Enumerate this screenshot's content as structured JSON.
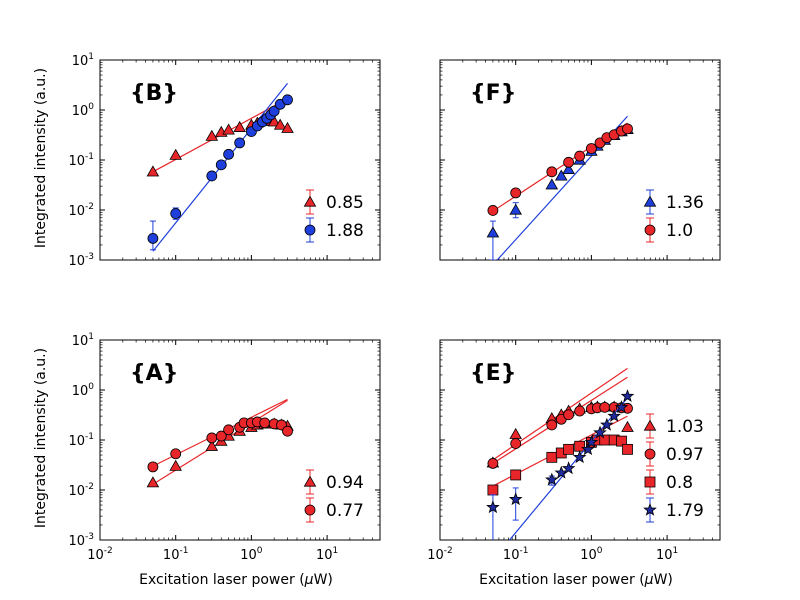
{
  "chart_data": {
    "type": "scatter",
    "scale": "log-log",
    "figure_ylabel": "Integrated intensity (a.u.)",
    "figure_xlabel_prefix": "Excitation laser power (",
    "figure_xlabel_mu": "μ",
    "figure_xlabel_suffix": "W)",
    "xlim": [
      0.01,
      50
    ],
    "ylim": [
      0.001,
      10
    ],
    "x_ticks": [
      {
        "value": 0.01,
        "base": "10",
        "exp": "-2"
      },
      {
        "value": 0.1,
        "base": "10",
        "exp": "-1"
      },
      {
        "value": 1,
        "base": "10",
        "exp": "0"
      },
      {
        "value": 10,
        "base": "10",
        "exp": "1"
      }
    ],
    "y_ticks": [
      {
        "value": 0.001,
        "base": "10",
        "exp": "-3"
      },
      {
        "value": 0.01,
        "base": "10",
        "exp": "-2"
      },
      {
        "value": 0.1,
        "base": "10",
        "exp": "-1"
      },
      {
        "value": 1,
        "base": "10",
        "exp": "0"
      },
      {
        "value": 10,
        "base": "10",
        "exp": "1"
      }
    ],
    "panels": [
      {
        "id": "B",
        "title": "{B}",
        "position": "top-left",
        "show_ylabels": true,
        "show_xlabels": false,
        "series": [
          {
            "name": "0.85",
            "marker": "triangle",
            "color": "#e8262a",
            "line_color": "#e8262a",
            "x": [
              0.05,
              0.1,
              0.3,
              0.4,
              0.5,
              0.7,
              1.0,
              1.2,
              1.4,
              1.6,
              1.8,
              2.0,
              2.4,
              3.0
            ],
            "y": [
              0.058,
              0.125,
              0.3,
              0.36,
              0.4,
              0.45,
              0.5,
              0.55,
              0.6,
              0.62,
              0.6,
              0.58,
              0.5,
              0.43
            ],
            "fit": {
              "x": [
                0.05,
                2.4
              ],
              "y": [
                0.058,
                1.4
              ]
            }
          },
          {
            "name": "1.88",
            "marker": "circle",
            "color": "#1f3fdc",
            "line_color": "#1f3fdc",
            "x": [
              0.05,
              0.1,
              0.3,
              0.4,
              0.5,
              0.7,
              1.0,
              1.2,
              1.4,
              1.6,
              1.8,
              2.0,
              2.4,
              3.0
            ],
            "y": [
              0.0027,
              0.0085,
              0.048,
              0.08,
              0.13,
              0.22,
              0.37,
              0.48,
              0.58,
              0.68,
              0.8,
              0.95,
              1.3,
              1.6
            ],
            "fit": {
              "x": [
                0.05,
                3.0
              ],
              "y": [
                0.0015,
                3.4
              ]
            },
            "errors": [
              {
                "x": 0.05,
                "lo": 0.0016,
                "hi": 0.006
              },
              {
                "x": 0.1,
                "lo": 0.0065,
                "hi": 0.011
              }
            ]
          }
        ]
      },
      {
        "id": "F",
        "title": "{F}",
        "position": "top-right",
        "show_ylabels": false,
        "show_xlabels": false,
        "series": [
          {
            "name": "1.36",
            "marker": "triangle",
            "color": "#1f3fdc",
            "line_color": "#1f3fdc",
            "x": [
              0.05,
              0.1,
              0.3,
              0.4,
              0.5,
              0.7,
              1.0,
              1.2,
              1.5,
              2.0,
              2.5,
              3.0
            ],
            "y": [
              0.0035,
              0.01,
              0.032,
              0.048,
              0.065,
              0.1,
              0.15,
              0.19,
              0.25,
              0.31,
              0.37,
              0.41
            ],
            "fit": {
              "x": [
                0.057,
                3.0
              ],
              "y": [
                0.001,
                0.75
              ]
            },
            "errors": [
              {
                "x": 0.05,
                "lo": 0.001,
                "hi": 0.006
              },
              {
                "x": 0.1,
                "lo": 0.007,
                "hi": 0.014
              }
            ]
          },
          {
            "name": "1.0",
            "marker": "circle",
            "color": "#e8262a",
            "line_color": "#e8262a",
            "x": [
              0.05,
              0.1,
              0.3,
              0.5,
              0.7,
              1.0,
              1.3,
              1.6,
              2.0,
              2.5,
              3.0
            ],
            "y": [
              0.0098,
              0.022,
              0.058,
              0.09,
              0.12,
              0.17,
              0.22,
              0.28,
              0.32,
              0.38,
              0.42
            ],
            "fit": {
              "x": [
                0.05,
                3.0
              ],
              "y": [
                0.0095,
                0.55
              ]
            }
          }
        ]
      },
      {
        "id": "A",
        "title": "{A}",
        "position": "bottom-left",
        "show_ylabels": true,
        "show_xlabels": true,
        "series": [
          {
            "name": "0.94",
            "marker": "triangle",
            "color": "#e8262a",
            "line_color": "#e8262a",
            "x": [
              0.05,
              0.1,
              0.3,
              0.4,
              0.5,
              0.7,
              1.0,
              1.2,
              1.5,
              2.0,
              2.5,
              3.0
            ],
            "y": [
              0.014,
              0.03,
              0.075,
              0.095,
              0.12,
              0.15,
              0.18,
              0.2,
              0.21,
              0.21,
              0.2,
              0.19
            ],
            "fit": {
              "x": [
                0.05,
                3.0
              ],
              "y": [
                0.013,
                0.62
              ]
            }
          },
          {
            "name": "0.77",
            "marker": "circle",
            "color": "#e8262a",
            "line_color": "#e8262a",
            "x": [
              0.05,
              0.1,
              0.3,
              0.4,
              0.5,
              0.7,
              0.8,
              1.0,
              1.2,
              1.5,
              2.0,
              2.5,
              3.0
            ],
            "y": [
              0.029,
              0.053,
              0.11,
              0.12,
              0.16,
              0.18,
              0.22,
              0.22,
              0.23,
              0.22,
              0.21,
              0.2,
              0.15
            ],
            "fit": {
              "x": [
                0.05,
                3.0
              ],
              "y": [
                0.03,
                0.65
              ]
            }
          }
        ]
      },
      {
        "id": "E",
        "title": "{E}",
        "position": "bottom-right",
        "show_ylabels": false,
        "show_xlabels": true,
        "series": [
          {
            "name": "1.03",
            "marker": "triangle",
            "color": "#e8262a",
            "line_color": "#e8262a",
            "x": [
              0.05,
              0.1,
              0.3,
              0.4,
              0.5,
              0.7,
              1.0,
              1.2,
              1.5,
              2.0,
              2.5,
              3.0
            ],
            "y": [
              0.035,
              0.13,
              0.27,
              0.32,
              0.38,
              0.42,
              0.45,
              0.46,
              0.46,
              0.46,
              0.45,
              0.18
            ],
            "fit": {
              "x": [
                0.05,
                3.0
              ],
              "y": [
                0.04,
                2.7
              ]
            }
          },
          {
            "name": "0.97",
            "marker": "circle",
            "color": "#e8262a",
            "line_color": "#e8262a",
            "x": [
              0.05,
              0.1,
              0.3,
              0.4,
              0.5,
              0.7,
              1.0,
              1.2,
              1.5,
              2.0,
              2.5,
              3.0
            ],
            "y": [
              0.034,
              0.085,
              0.2,
              0.26,
              0.32,
              0.38,
              0.42,
              0.44,
              0.45,
              0.45,
              0.44,
              0.43
            ],
            "fit": {
              "x": [
                0.05,
                3.0
              ],
              "y": [
                0.034,
                1.8
              ]
            }
          },
          {
            "name": "0.8",
            "marker": "square",
            "color": "#e8262a",
            "line_color": "#e8262a",
            "x": [
              0.05,
              0.1,
              0.3,
              0.4,
              0.5,
              0.7,
              1.0,
              1.2,
              1.5,
              2.0,
              2.5,
              3.0
            ],
            "y": [
              0.01,
              0.02,
              0.045,
              0.055,
              0.065,
              0.075,
              0.09,
              0.1,
              0.1,
              0.1,
              0.095,
              0.065
            ],
            "fit": {
              "x": [
                0.05,
                3.0
              ],
              "y": [
                0.012,
                0.3
              ]
            }
          },
          {
            "name": "1.79",
            "marker": "star",
            "color": "#1f2a9c",
            "line_color": "#1f3fdc",
            "x": [
              0.05,
              0.1,
              0.3,
              0.4,
              0.5,
              0.7,
              0.9,
              1.0,
              1.3,
              1.6,
              2.0,
              2.5,
              3.0
            ],
            "y": [
              0.0045,
              0.0065,
              0.016,
              0.022,
              0.027,
              0.045,
              0.065,
              0.09,
              0.14,
              0.2,
              0.3,
              0.45,
              0.75
            ],
            "fit": {
              "x": [
                0.083,
                3.0
              ],
              "y": [
                0.001,
                0.7
              ]
            },
            "errors": [
              {
                "x": 0.05,
                "lo": 0.0005,
                "hi": 0.008
              },
              {
                "x": 0.1,
                "lo": 0.0025,
                "hi": 0.011
              },
              {
                "x": 0.3,
                "lo": 0.0125,
                "hi": 0.019
              }
            ]
          }
        ]
      }
    ]
  }
}
